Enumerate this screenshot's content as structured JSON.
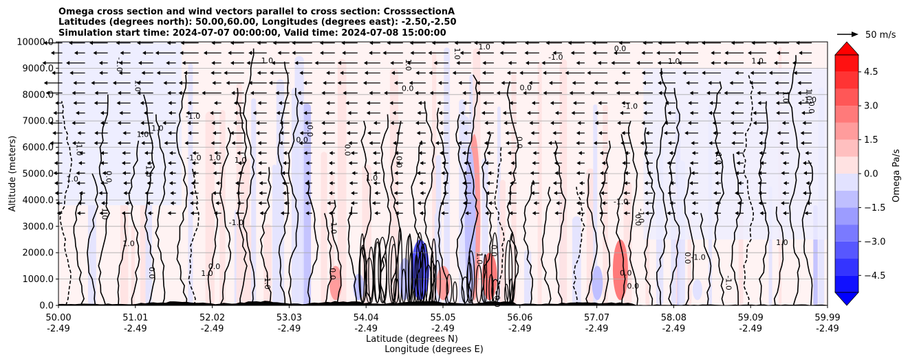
{
  "chart_data": {
    "type": "contour",
    "title_lines": [
      "Omega cross section and wind vectors parallel to cross section: CrosssectionA",
      "Latitudes (degrees north): 50.00,60.00, Longitudes (degrees east): -2.50,-2.50",
      "Simulation start time: 2024-07-07 00:00:00, Valid time: 2024-07-08 15:00:00"
    ],
    "ylabel": "Altitude (meters)",
    "xlabel_1": "Latitude (degrees N)",
    "xlabel_2": "Longitude (degrees E)",
    "ylim": [
      0,
      10000
    ],
    "xlim": [
      50.0,
      59.99
    ],
    "y_ticks": [
      0,
      1000,
      2000,
      3000,
      4000,
      5000,
      6000,
      7000,
      8000,
      9000,
      10000
    ],
    "y_tick_labels": [
      "0.0",
      "1000.0",
      "2000.0",
      "3000.0",
      "4000.0",
      "5000.0",
      "6000.0",
      "7000.0",
      "8000.0",
      "9000.0",
      "10000.0"
    ],
    "x_ticks": [
      {
        "lat": "50.00",
        "lon": "-2.49"
      },
      {
        "lat": "51.01",
        "lon": "-2.49"
      },
      {
        "lat": "52.02",
        "lon": "-2.49"
      },
      {
        "lat": "53.03",
        "lon": "-2.49"
      },
      {
        "lat": "54.04",
        "lon": "-2.49"
      },
      {
        "lat": "55.05",
        "lon": "-2.49"
      },
      {
        "lat": "56.06",
        "lon": "-2.49"
      },
      {
        "lat": "57.07",
        "lon": "-2.49"
      },
      {
        "lat": "58.08",
        "lon": "-2.49"
      },
      {
        "lat": "59.09",
        "lon": "-2.49"
      },
      {
        "lat": "59.99",
        "lon": "-2.49"
      }
    ],
    "colorbar": {
      "label": "Omega Pa/s",
      "range": [
        -5.25,
        5.25
      ],
      "ticks": [
        -4.5,
        -3.0,
        -1.5,
        0.0,
        1.5,
        3.0,
        4.5
      ],
      "tick_labels": [
        "−4.5",
        "−3.0",
        "−1.5",
        "0.0",
        "1.5",
        "3.0",
        "4.5"
      ],
      "levels": [
        -5.25,
        -4.5,
        -3.75,
        -3.0,
        -2.25,
        -1.5,
        -0.75,
        0.0,
        0.75,
        1.5,
        2.25,
        3.0,
        3.75,
        4.5,
        5.25
      ],
      "extend": "both"
    },
    "vector_key": {
      "label": "50 m/s",
      "value": 50
    },
    "contour_labels": [
      "0.0",
      "1.0",
      "-1.0"
    ],
    "omega_features": [
      {
        "lat": 55.4,
        "alt_top": 6500,
        "value": 1.5
      },
      {
        "lat": 55.6,
        "alt_top": 2000,
        "value": 2.5
      },
      {
        "lat": 54.7,
        "alt_top": 2500,
        "value": -3.5
      },
      {
        "lat": 55.0,
        "alt_top": 1500,
        "value": 2.0
      },
      {
        "lat": 54.5,
        "alt_top": 1800,
        "value": -1.5
      },
      {
        "lat": 57.3,
        "alt_top": 2500,
        "value": 2.5
      },
      {
        "lat": 55.35,
        "alt_top": 6000,
        "value": -1.0
      },
      {
        "lat": 53.6,
        "alt_top": 1500,
        "value": 1.5
      },
      {
        "lat": 53.9,
        "alt_top": 1200,
        "value": -1.0
      },
      {
        "lat": 57.0,
        "alt_top": 1500,
        "value": -1.0
      },
      {
        "lat": 58.3,
        "alt_top": 1000,
        "value": -0.5
      }
    ]
  }
}
